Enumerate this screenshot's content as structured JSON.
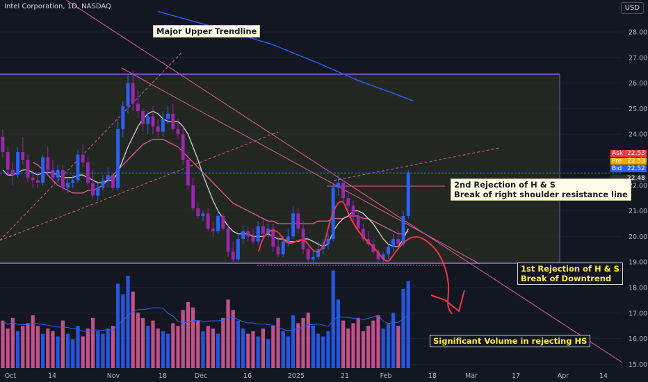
{
  "header": {
    "title": "Intel Corporation, 1D, NASDAQ",
    "currency": "USD"
  },
  "quotes": [
    {
      "label": "Ask",
      "value": "22.53",
      "color": "#f23645"
    },
    {
      "label": "Pre",
      "value": "22.53",
      "color": "#f7a600"
    },
    {
      "label": "Bid",
      "value": "22.52",
      "color": "#2962ff"
    },
    {
      "label": "",
      "value": "22.48",
      "color": "#2a2e39"
    }
  ],
  "annotations": {
    "major_upper_trendline": "Major Upper Trendline",
    "second_rejection_line1": "2nd Rejection of H & S",
    "second_rejection_line2": "Break of right shoulder resistance line",
    "first_rejection_line1": "1st Rejection of H & S",
    "first_rejection_line2": "Break of Downtrend",
    "volume_note": "Significant Volume in rejecting HS"
  },
  "chart_data": {
    "type": "candlestick",
    "title": "Intel Corporation, 1D, NASDAQ",
    "xlabel": "",
    "ylabel": "",
    "y_ticks": [
      15,
      16,
      17,
      18,
      19,
      20,
      21,
      22,
      23,
      24,
      25,
      26,
      27,
      28
    ],
    "x_ticks": [
      "Oct",
      "14",
      "Nov",
      "18",
      "Dec",
      "16",
      "2025",
      "21",
      "Feb",
      "18",
      "Mar",
      "17",
      "Apr",
      "14"
    ],
    "ylim": [
      14.9,
      28.5
    ],
    "current_price": 22.48,
    "colors": {
      "up": "#2962ff",
      "down": "#9c27b0",
      "vol_up": "#2962ff",
      "vol_down": "#e05c9a",
      "ma_fast": "#d1d4dc",
      "ma_slow": "#e05c9a",
      "ma_long": "#2962ff"
    },
    "candles": [
      [
        23.9,
        24.2,
        23.1,
        23.3
      ],
      [
        23.3,
        23.5,
        22.4,
        22.6
      ],
      [
        22.6,
        22.9,
        22.0,
        22.4
      ],
      [
        22.4,
        23.5,
        22.3,
        23.3
      ],
      [
        23.3,
        23.9,
        22.8,
        23.0
      ],
      [
        23.0,
        23.2,
        22.1,
        22.3
      ],
      [
        22.3,
        22.6,
        21.9,
        22.2
      ],
      [
        22.2,
        22.5,
        21.9,
        22.1
      ],
      [
        22.1,
        23.2,
        22.0,
        23.1
      ],
      [
        23.1,
        23.5,
        22.4,
        22.6
      ],
      [
        22.6,
        23.0,
        22.1,
        22.3
      ],
      [
        22.3,
        22.8,
        22.1,
        22.6
      ],
      [
        22.6,
        22.8,
        21.8,
        21.9
      ],
      [
        21.9,
        22.3,
        21.7,
        22.1
      ],
      [
        22.1,
        22.4,
        21.9,
        22.2
      ],
      [
        22.2,
        23.4,
        22.1,
        23.2
      ],
      [
        23.2,
        23.6,
        22.7,
        22.9
      ],
      [
        22.9,
        23.1,
        22.0,
        22.1
      ],
      [
        22.1,
        22.6,
        21.5,
        21.6
      ],
      [
        21.6,
        22.1,
        21.4,
        21.9
      ],
      [
        21.9,
        22.4,
        21.8,
        22.2
      ],
      [
        22.2,
        22.7,
        21.9,
        22.4
      ],
      [
        22.4,
        22.5,
        21.8,
        21.9
      ],
      [
        21.9,
        24.6,
        21.8,
        24.2
      ],
      [
        24.2,
        25.3,
        23.9,
        25.1
      ],
      [
        25.1,
        26.3,
        24.8,
        26.0
      ],
      [
        26.0,
        26.5,
        24.9,
        25.2
      ],
      [
        25.2,
        25.7,
        24.6,
        24.9
      ],
      [
        24.9,
        25.0,
        24.1,
        24.4
      ],
      [
        24.4,
        24.9,
        24.0,
        24.7
      ],
      [
        24.7,
        25.1,
        24.0,
        24.3
      ],
      [
        24.3,
        24.6,
        23.9,
        24.1
      ],
      [
        24.1,
        24.9,
        23.9,
        24.6
      ],
      [
        24.6,
        25.1,
        24.4,
        24.8
      ],
      [
        24.8,
        25.2,
        24.1,
        24.2
      ],
      [
        24.2,
        24.6,
        23.8,
        24.0
      ],
      [
        24.0,
        24.3,
        22.8,
        23.0
      ],
      [
        23.0,
        23.3,
        21.8,
        22.0
      ],
      [
        22.0,
        22.3,
        21.0,
        21.1
      ],
      [
        21.1,
        21.3,
        20.7,
        20.8
      ],
      [
        20.8,
        21.0,
        20.6,
        20.9
      ],
      [
        20.9,
        21.1,
        20.2,
        20.3
      ],
      [
        20.3,
        20.6,
        20.0,
        20.2
      ],
      [
        20.2,
        21.0,
        20.1,
        20.8
      ],
      [
        20.8,
        20.9,
        20.2,
        20.3
      ],
      [
        20.3,
        20.5,
        19.2,
        19.4
      ],
      [
        19.4,
        19.8,
        19.0,
        19.1
      ],
      [
        19.1,
        20.1,
        19.0,
        19.9
      ],
      [
        19.9,
        20.4,
        19.7,
        20.2
      ],
      [
        20.2,
        20.4,
        19.8,
        20.0
      ],
      [
        20.0,
        20.3,
        19.7,
        19.8
      ],
      [
        19.8,
        20.6,
        19.7,
        20.4
      ],
      [
        20.4,
        20.7,
        19.9,
        20.1
      ],
      [
        20.1,
        20.5,
        19.9,
        20.3
      ],
      [
        20.3,
        20.5,
        19.4,
        19.6
      ],
      [
        19.6,
        20.0,
        19.2,
        19.3
      ],
      [
        19.3,
        20.0,
        19.2,
        19.8
      ],
      [
        19.8,
        20.3,
        19.6,
        20.0
      ],
      [
        20.0,
        21.2,
        19.9,
        20.9
      ],
      [
        20.9,
        21.1,
        20.1,
        20.3
      ],
      [
        20.3,
        20.6,
        19.3,
        19.5
      ],
      [
        19.5,
        19.6,
        19.0,
        19.1
      ],
      [
        19.1,
        19.5,
        18.9,
        19.2
      ],
      [
        19.2,
        19.8,
        19.1,
        19.5
      ],
      [
        19.5,
        19.9,
        19.3,
        19.7
      ],
      [
        19.7,
        20.1,
        19.5,
        19.9
      ],
      [
        19.9,
        22.1,
        19.8,
        21.9
      ],
      [
        21.9,
        22.4,
        21.6,
        22.1
      ],
      [
        22.1,
        22.2,
        21.3,
        21.5
      ],
      [
        21.5,
        21.8,
        21.0,
        21.2
      ],
      [
        21.2,
        21.4,
        20.6,
        20.8
      ],
      [
        20.8,
        21.0,
        20.2,
        20.3
      ],
      [
        20.3,
        20.5,
        19.8,
        19.9
      ],
      [
        19.9,
        20.2,
        19.6,
        19.7
      ],
      [
        19.7,
        19.9,
        19.3,
        19.4
      ],
      [
        19.4,
        19.5,
        19.0,
        19.1
      ],
      [
        19.1,
        19.4,
        19.0,
        19.3
      ],
      [
        19.3,
        19.7,
        19.1,
        19.6
      ],
      [
        19.6,
        20.1,
        19.4,
        19.9
      ],
      [
        19.9,
        20.3,
        19.6,
        19.7
      ],
      [
        19.7,
        21.0,
        19.6,
        20.8
      ],
      [
        20.8,
        22.6,
        20.7,
        22.5
      ]
    ],
    "volumes": [
      [
        1.8,
        0
      ],
      [
        1.5,
        0
      ],
      [
        1.9,
        0
      ],
      [
        1.4,
        1
      ],
      [
        1.6,
        0
      ],
      [
        1.7,
        0
      ],
      [
        2.0,
        0
      ],
      [
        1.6,
        0
      ],
      [
        1.3,
        1
      ],
      [
        1.5,
        0
      ],
      [
        1.4,
        0
      ],
      [
        1.2,
        1
      ],
      [
        1.8,
        0
      ],
      [
        1.3,
        1
      ],
      [
        1.1,
        1
      ],
      [
        1.6,
        1
      ],
      [
        1.2,
        0
      ],
      [
        1.5,
        0
      ],
      [
        1.9,
        0
      ],
      [
        1.4,
        1
      ],
      [
        1.3,
        1
      ],
      [
        1.5,
        1
      ],
      [
        1.6,
        0
      ],
      [
        3.2,
        1
      ],
      [
        2.8,
        1
      ],
      [
        3.5,
        1
      ],
      [
        2.9,
        0
      ],
      [
        2.1,
        0
      ],
      [
        1.9,
        0
      ],
      [
        1.6,
        1
      ],
      [
        1.8,
        0
      ],
      [
        1.5,
        0
      ],
      [
        1.4,
        1
      ],
      [
        1.3,
        1
      ],
      [
        1.7,
        0
      ],
      [
        1.6,
        0
      ],
      [
        2.2,
        0
      ],
      [
        2.5,
        0
      ],
      [
        2.3,
        0
      ],
      [
        1.8,
        0
      ],
      [
        1.4,
        1
      ],
      [
        1.6,
        0
      ],
      [
        1.5,
        0
      ],
      [
        1.3,
        1
      ],
      [
        1.9,
        0
      ],
      [
        2.6,
        0
      ],
      [
        2.2,
        0
      ],
      [
        1.8,
        1
      ],
      [
        1.5,
        1
      ],
      [
        1.3,
        0
      ],
      [
        1.4,
        0
      ],
      [
        1.2,
        1
      ],
      [
        1.5,
        0
      ],
      [
        1.1,
        1
      ],
      [
        1.6,
        0
      ],
      [
        1.9,
        0
      ],
      [
        1.4,
        1
      ],
      [
        1.2,
        1
      ],
      [
        2.0,
        1
      ],
      [
        1.7,
        0
      ],
      [
        1.9,
        0
      ],
      [
        2.1,
        0
      ],
      [
        1.6,
        1
      ],
      [
        1.3,
        1
      ],
      [
        1.2,
        1
      ],
      [
        1.4,
        1
      ],
      [
        3.7,
        1
      ],
      [
        2.6,
        1
      ],
      [
        1.8,
        0
      ],
      [
        1.5,
        0
      ],
      [
        1.7,
        0
      ],
      [
        1.9,
        0
      ],
      [
        1.4,
        0
      ],
      [
        1.6,
        0
      ],
      [
        1.8,
        0
      ],
      [
        2.0,
        0
      ],
      [
        1.5,
        1
      ],
      [
        1.7,
        1
      ],
      [
        2.1,
        1
      ],
      [
        1.6,
        0
      ],
      [
        3.0,
        1
      ],
      [
        3.3,
        1
      ]
    ],
    "ma_fast": [
      22.6,
      22.4,
      22.4,
      22.5,
      22.6,
      22.6,
      22.5,
      22.4,
      22.5,
      22.5,
      22.5,
      22.4,
      22.3,
      22.3,
      22.3,
      22.4,
      22.4,
      22.3,
      22.2,
      22.1,
      22.1,
      22.2,
      22.2,
      22.5,
      23.0,
      23.5,
      23.9,
      24.3,
      24.6,
      24.8,
      24.9,
      24.8,
      24.6,
      24.5,
      24.5,
      24.5,
      24.3,
      24.0,
      23.5,
      23.0,
      22.4,
      21.9,
      21.4,
      21.0,
      20.7,
      20.4,
      20.2,
      20.1,
      20.1,
      20.1,
      20.0,
      20.0,
      20.0,
      20.1,
      20.0,
      19.9,
      19.9,
      19.8,
      19.8,
      19.8,
      19.9,
      19.9,
      19.8,
      19.7,
      19.6,
      19.7,
      20.2,
      20.5,
      20.7,
      20.8,
      21.0,
      21.0,
      20.9,
      20.7,
      20.5,
      20.2,
      19.9,
      19.7,
      19.6,
      19.6,
      19.9,
      20.3
    ],
    "ma_slow": [
      null,
      null,
      null,
      null,
      null,
      null,
      22.9,
      22.8,
      22.6,
      22.4,
      22.2,
      22.0,
      21.9,
      21.8,
      21.7,
      21.7,
      21.7,
      21.8,
      21.8,
      21.9,
      22.0,
      22.2,
      22.4,
      22.6,
      22.8,
      23.0,
      23.2,
      23.4,
      23.6,
      23.7,
      23.8,
      23.8,
      23.8,
      23.7,
      23.6,
      23.5,
      23.3,
      23.1,
      22.9,
      22.7,
      22.5,
      22.3,
      22.1,
      21.9,
      21.7,
      21.5,
      21.3,
      21.2,
      21.1,
      21.0,
      20.9,
      20.8,
      20.7,
      20.6,
      20.6,
      20.5,
      20.5,
      20.5,
      20.5,
      20.5,
      20.5,
      20.5,
      20.5,
      20.6,
      20.6,
      20.6,
      20.7,
      20.7,
      20.7,
      20.8,
      20.8,
      20.8,
      20.7,
      20.7,
      20.6,
      20.5,
      20.4,
      20.3,
      20.2,
      20.1,
      20.1,
      20.2
    ],
    "ma_long_points": [
      [
        31,
        28.8
      ],
      [
        44,
        28.1
      ],
      [
        54,
        27.5
      ],
      [
        64,
        26.7
      ],
      [
        71,
        26.1
      ],
      [
        78,
        25.6
      ],
      [
        82,
        25.3
      ]
    ]
  }
}
